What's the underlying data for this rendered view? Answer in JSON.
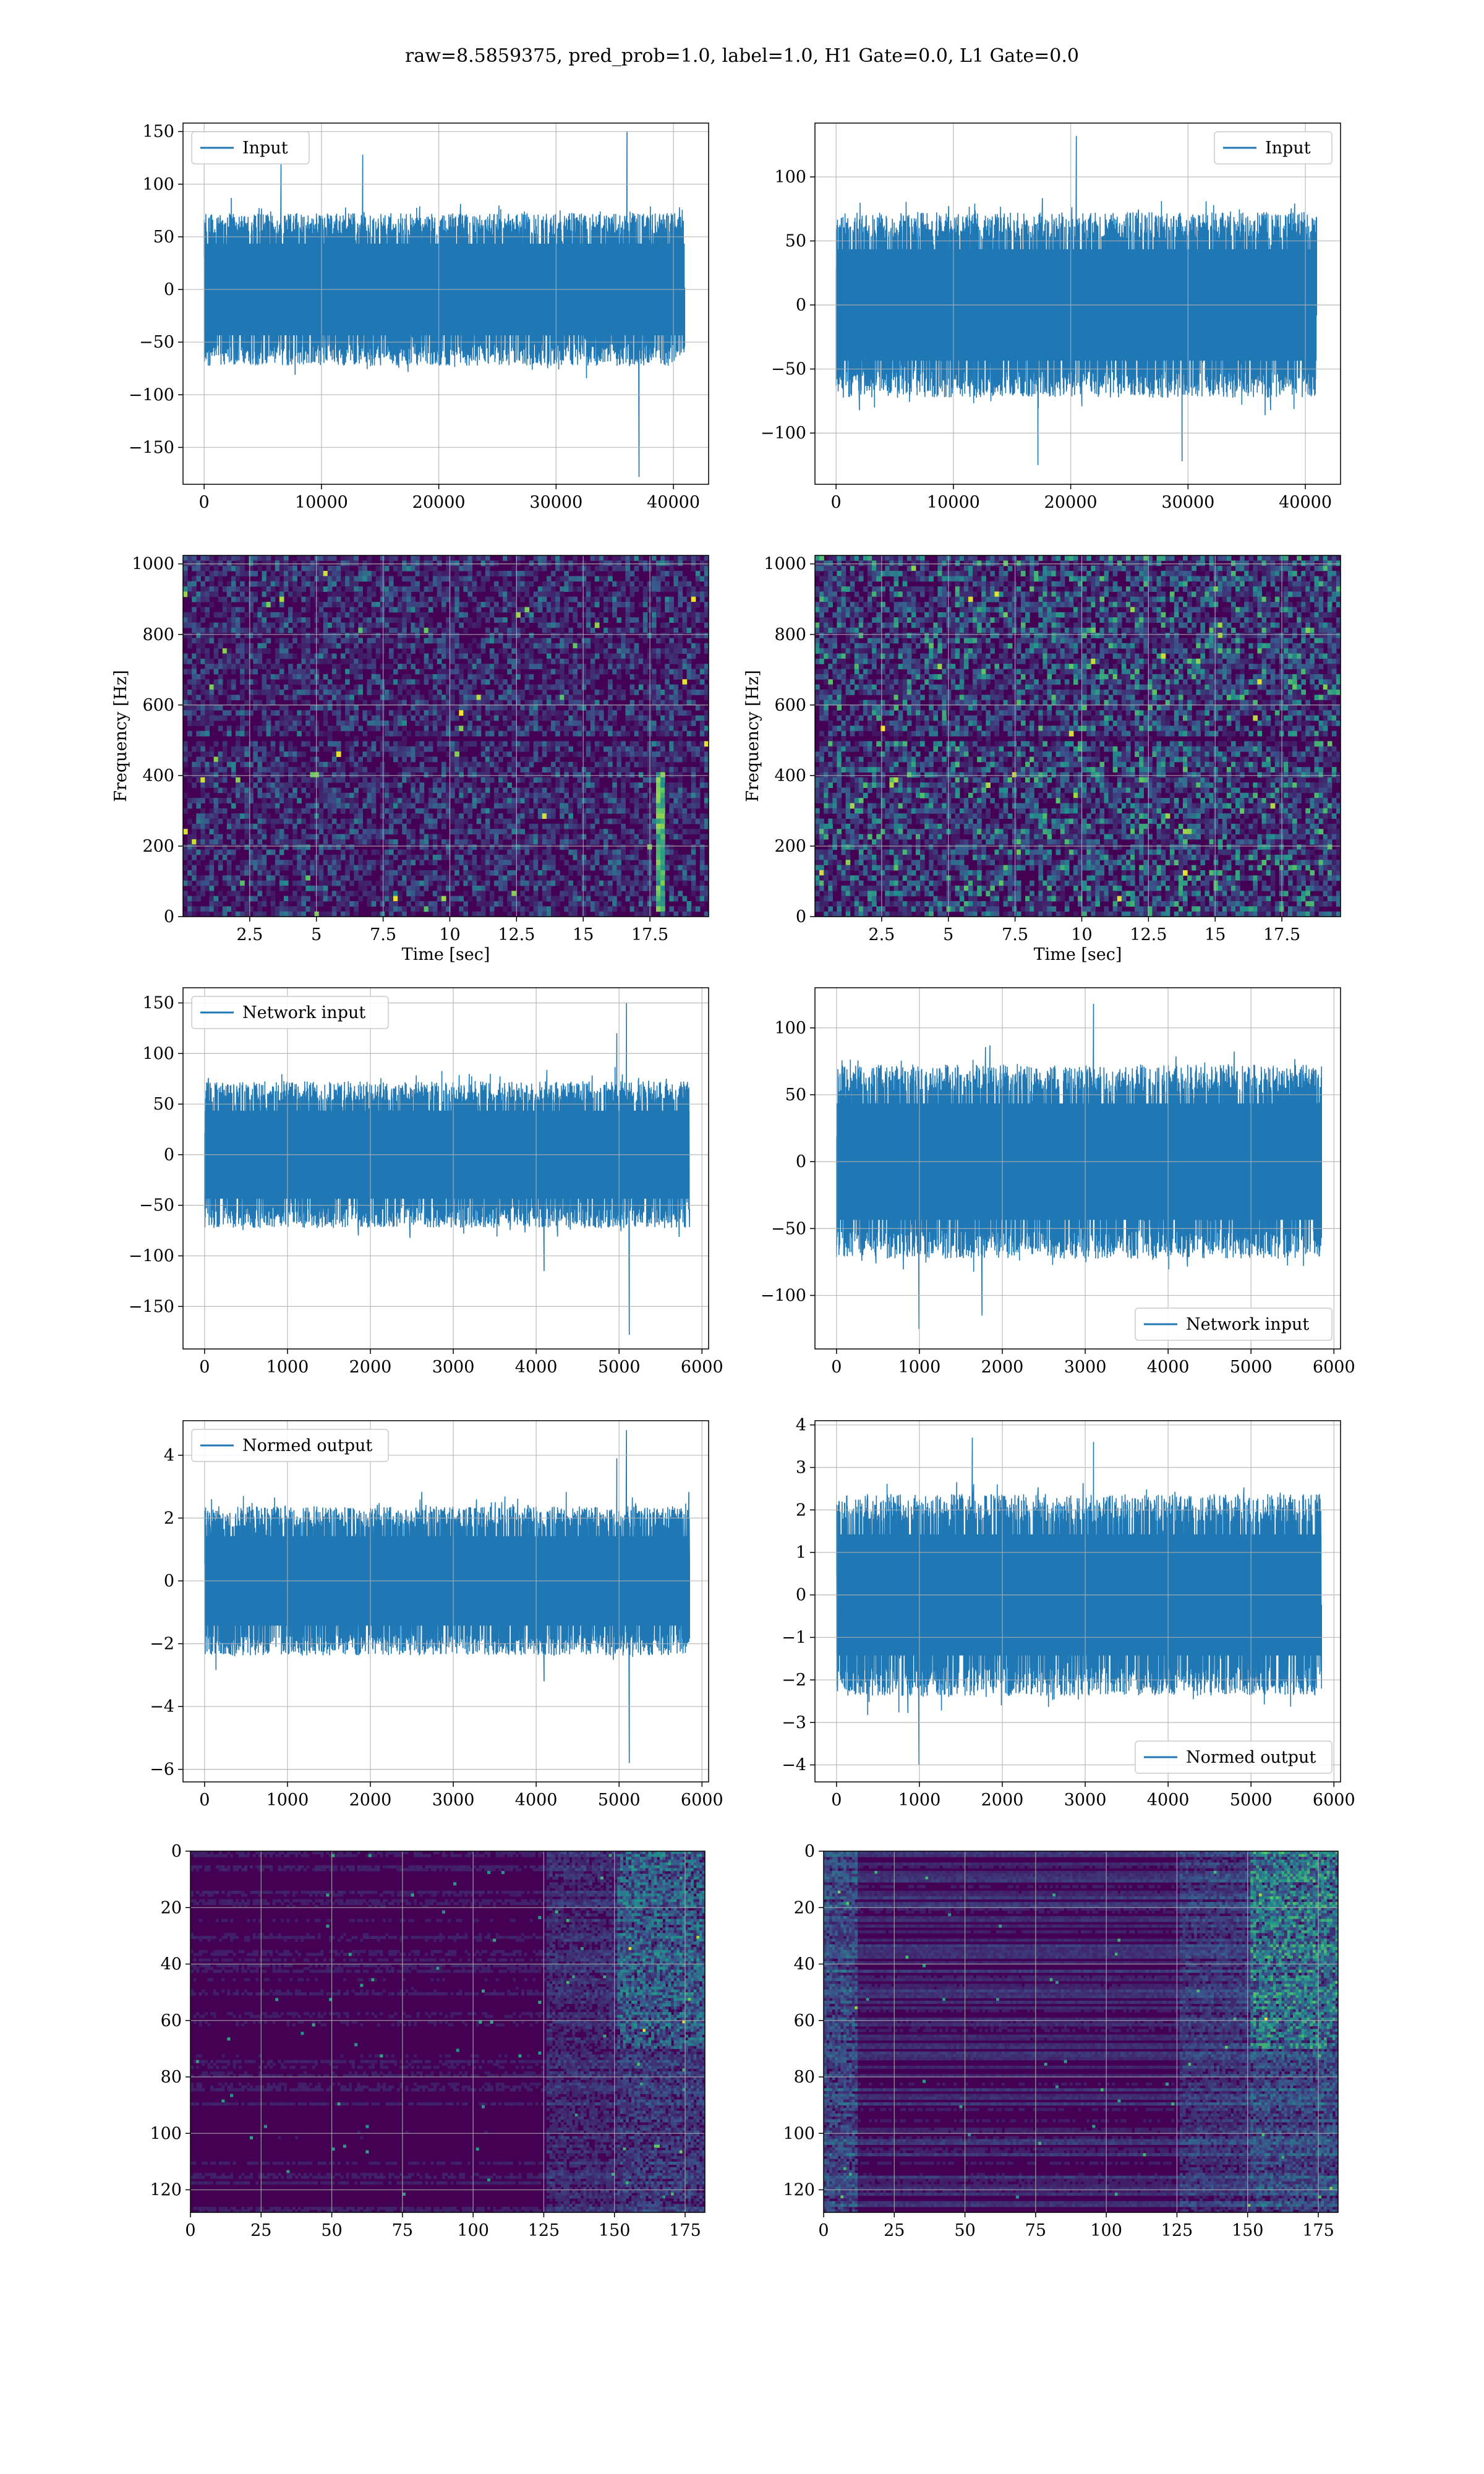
{
  "title": "raw=8.5859375, pred_prob=1.0, label=1.0, H1 Gate=0.0, L1 Gate=0.0",
  "colors": {
    "line": "#1f77b4",
    "grid": "#b0b0b0",
    "viridis_low": "#440154",
    "viridis_mid": "#21918c",
    "viridis_high": "#fde725"
  },
  "chart_data": [
    {
      "id": "input-left",
      "type": "line",
      "legend": "Input",
      "legend_loc": "upper-left",
      "xlim": [
        -1800,
        43000
      ],
      "ylim": [
        -185,
        158
      ],
      "xticks": [
        0,
        10000,
        20000,
        30000,
        40000
      ],
      "yticks": [
        -150,
        -100,
        -50,
        0,
        50,
        100,
        150
      ],
      "x_range": [
        0,
        40960
      ],
      "amp": 58,
      "spikes": [
        [
          0.88,
          150
        ],
        [
          0.905,
          -178
        ],
        [
          0.33,
          128
        ],
        [
          0.16,
          120
        ]
      ],
      "xlabel": "",
      "ylabel": ""
    },
    {
      "id": "input-right",
      "type": "line",
      "legend": "Input",
      "legend_loc": "upper-right",
      "xlim": [
        -1800,
        43000
      ],
      "ylim": [
        -140,
        142
      ],
      "xticks": [
        0,
        10000,
        20000,
        30000,
        40000
      ],
      "yticks": [
        -100,
        -50,
        0,
        50,
        100
      ],
      "x_range": [
        0,
        40960
      ],
      "amp": 58,
      "spikes": [
        [
          0.5,
          132
        ],
        [
          0.42,
          -125
        ],
        [
          0.72,
          -122
        ]
      ],
      "xlabel": "",
      "ylabel": ""
    },
    {
      "id": "spec-left",
      "type": "heatmap",
      "xlim": [
        0,
        19.7
      ],
      "ylim": [
        0,
        1024
      ],
      "xticks": [
        2.5,
        5.0,
        7.5,
        10.0,
        12.5,
        15.0,
        17.5
      ],
      "yticks": [
        0,
        200,
        400,
        600,
        800,
        1000
      ],
      "xlabel": "Time [sec]",
      "ylabel": "Frequency [Hz]",
      "intensity": 0.35,
      "feature": "chirp-near-17.8s"
    },
    {
      "id": "spec-right",
      "type": "heatmap",
      "xlim": [
        0,
        19.7
      ],
      "ylim": [
        0,
        1024
      ],
      "xticks": [
        2.5,
        5.0,
        7.5,
        10.0,
        12.5,
        15.0,
        17.5
      ],
      "yticks": [
        0,
        200,
        400,
        600,
        800,
        1000
      ],
      "xlabel": "Time [sec]",
      "ylabel": "Frequency [Hz]",
      "intensity": 0.55,
      "feature": "none"
    },
    {
      "id": "network-left",
      "type": "line",
      "legend": "Network input",
      "legend_loc": "upper-left",
      "xlim": [
        -260,
        6080
      ],
      "ylim": [
        -192,
        165
      ],
      "xticks": [
        0,
        1000,
        2000,
        3000,
        4000,
        5000,
        6000
      ],
      "yticks": [
        -150,
        -100,
        -50,
        0,
        50,
        100,
        150
      ],
      "x_range": [
        0,
        5850
      ],
      "amp": 58,
      "spikes": [
        [
          0.87,
          150
        ],
        [
          0.876,
          -178
        ],
        [
          0.85,
          120
        ],
        [
          0.7,
          -115
        ]
      ],
      "xlabel": "",
      "ylabel": ""
    },
    {
      "id": "network-right",
      "type": "line",
      "legend": "Network input",
      "legend_loc": "lower-right",
      "xlim": [
        -260,
        6080
      ],
      "ylim": [
        -140,
        130
      ],
      "xticks": [
        0,
        1000,
        2000,
        3000,
        4000,
        5000,
        6000
      ],
      "yticks": [
        -100,
        -50,
        0,
        50,
        100
      ],
      "x_range": [
        0,
        5850
      ],
      "amp": 58,
      "spikes": [
        [
          0.17,
          -125
        ],
        [
          0.53,
          118
        ],
        [
          0.3,
          -115
        ]
      ],
      "xlabel": "",
      "ylabel": ""
    },
    {
      "id": "normed-left",
      "type": "line",
      "legend": "Normed output",
      "legend_loc": "upper-left",
      "xlim": [
        -260,
        6080
      ],
      "ylim": [
        -6.4,
        5.1
      ],
      "xticks": [
        0,
        1000,
        2000,
        3000,
        4000,
        5000,
        6000
      ],
      "yticks": [
        -6,
        -4,
        -2,
        0,
        2,
        4
      ],
      "x_range": [
        0,
        5850
      ],
      "amp": 1.9,
      "spikes": [
        [
          0.87,
          4.8
        ],
        [
          0.876,
          -5.8
        ],
        [
          0.85,
          3.9
        ],
        [
          0.7,
          -3.2
        ]
      ],
      "xlabel": "",
      "ylabel": ""
    },
    {
      "id": "normed-right",
      "type": "line",
      "legend": "Normed output",
      "legend_loc": "lower-right",
      "xlim": [
        -260,
        6080
      ],
      "ylim": [
        -4.4,
        4.1
      ],
      "xticks": [
        0,
        1000,
        2000,
        3000,
        4000,
        5000,
        6000
      ],
      "yticks": [
        -4,
        -3,
        -2,
        -1,
        0,
        1,
        2,
        3,
        4
      ],
      "x_range": [
        0,
        5850
      ],
      "amp": 1.9,
      "spikes": [
        [
          0.17,
          -4.0
        ],
        [
          0.28,
          3.7
        ],
        [
          0.53,
          3.6
        ]
      ],
      "xlabel": "",
      "ylabel": ""
    },
    {
      "id": "features-left",
      "type": "heatmap",
      "xlim": [
        0,
        182
      ],
      "ylim": [
        128,
        0
      ],
      "xticks": [
        0,
        25,
        50,
        75,
        100,
        125,
        150,
        175
      ],
      "yticks": [
        0,
        20,
        40,
        60,
        80,
        100,
        120
      ],
      "xlabel": "",
      "ylabel": "",
      "intensity": 0.25,
      "feature": "bright-band-150-175"
    },
    {
      "id": "features-right",
      "type": "heatmap",
      "xlim": [
        0,
        182
      ],
      "ylim": [
        128,
        0
      ],
      "xticks": [
        0,
        25,
        50,
        75,
        100,
        125,
        150,
        175
      ],
      "yticks": [
        0,
        20,
        40,
        60,
        80,
        100,
        120
      ],
      "xlabel": "",
      "ylabel": "",
      "intensity": 0.45,
      "feature": "bright-band-150-182"
    }
  ]
}
